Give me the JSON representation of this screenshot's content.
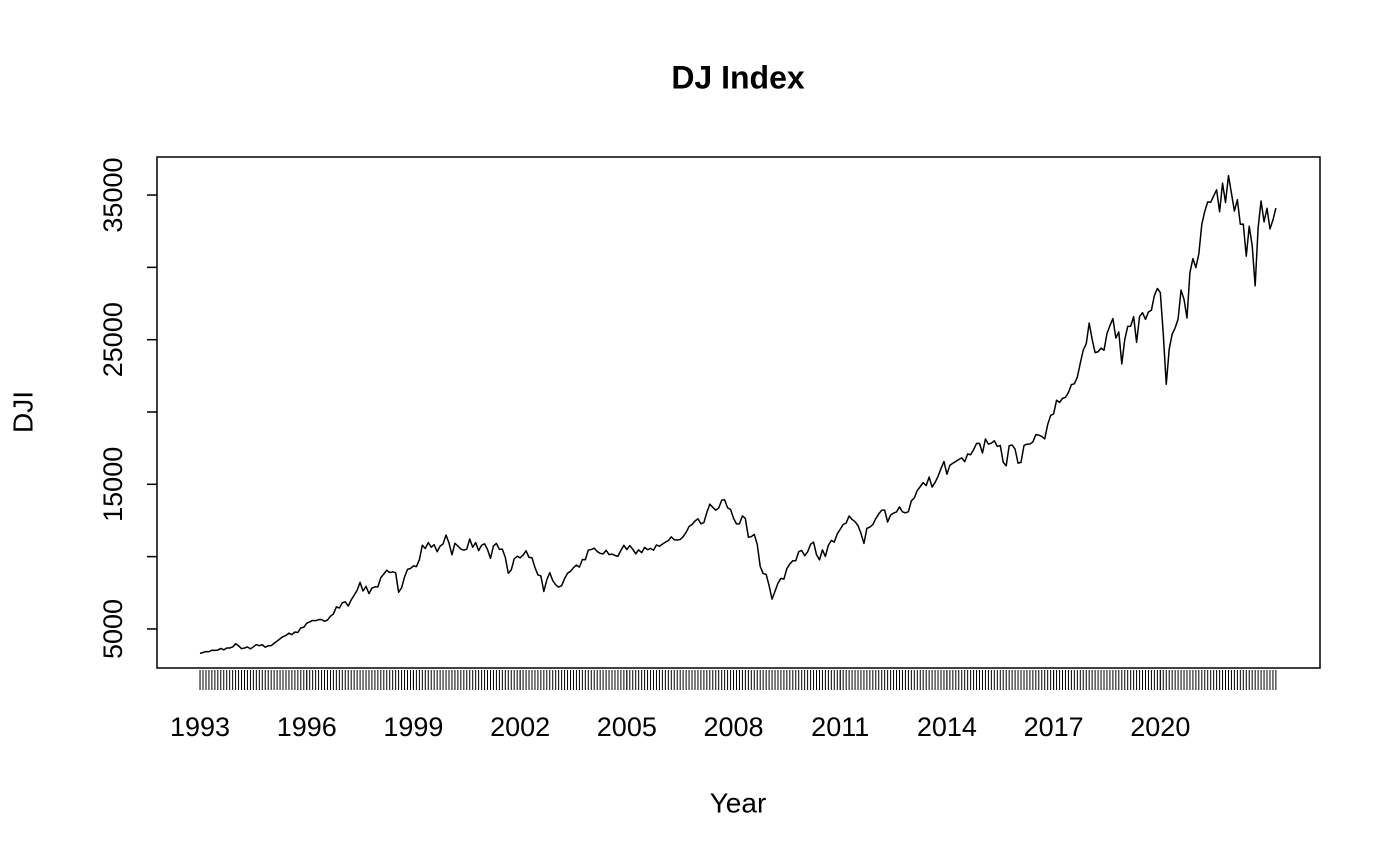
{
  "chart_data": {
    "type": "line",
    "title": "DJ Index",
    "xlabel": "Year",
    "ylabel": "DJI",
    "color": "#000000",
    "xlim": [
      1991.79,
      2024.49
    ],
    "ylim": [
      2300,
      37630
    ],
    "xticks": [
      1993,
      1996,
      1999,
      2002,
      2005,
      2008,
      2011,
      2014,
      2017,
      2020
    ],
    "yticks": [
      5000,
      {
        "value": 10000,
        "label": null
      },
      15000,
      {
        "value": 20000,
        "label": null
      },
      25000,
      {
        "value": 30000,
        "label": null
      },
      35000
    ],
    "x": [
      1993,
      1993.083,
      1993.167,
      1993.25,
      1993.333,
      1993.417,
      1993.5,
      1993.583,
      1993.667,
      1993.75,
      1993.833,
      1993.917,
      1994,
      1994.083,
      1994.167,
      1994.25,
      1994.333,
      1994.417,
      1994.5,
      1994.583,
      1994.667,
      1994.75,
      1994.833,
      1994.917,
      1995,
      1995.083,
      1995.167,
      1995.25,
      1995.333,
      1995.417,
      1995.5,
      1995.583,
      1995.667,
      1995.75,
      1995.833,
      1995.917,
      1996,
      1996.083,
      1996.167,
      1996.25,
      1996.333,
      1996.417,
      1996.5,
      1996.583,
      1996.667,
      1996.75,
      1996.833,
      1996.917,
      1997,
      1997.083,
      1997.167,
      1997.25,
      1997.333,
      1997.417,
      1997.5,
      1997.583,
      1997.667,
      1997.75,
      1997.833,
      1997.917,
      1998,
      1998.083,
      1998.167,
      1998.25,
      1998.333,
      1998.417,
      1998.5,
      1998.583,
      1998.667,
      1998.75,
      1998.833,
      1998.917,
      1999,
      1999.083,
      1999.167,
      1999.25,
      1999.333,
      1999.417,
      1999.5,
      1999.583,
      1999.667,
      1999.75,
      1999.833,
      1999.917,
      2000,
      2000.083,
      2000.167,
      2000.25,
      2000.333,
      2000.417,
      2000.5,
      2000.583,
      2000.667,
      2000.75,
      2000.833,
      2000.917,
      2001,
      2001.083,
      2001.167,
      2001.25,
      2001.333,
      2001.417,
      2001.5,
      2001.583,
      2001.667,
      2001.75,
      2001.833,
      2001.917,
      2002,
      2002.083,
      2002.167,
      2002.25,
      2002.333,
      2002.417,
      2002.5,
      2002.583,
      2002.667,
      2002.75,
      2002.833,
      2002.917,
      2003,
      2003.083,
      2003.167,
      2003.25,
      2003.333,
      2003.417,
      2003.5,
      2003.583,
      2003.667,
      2003.75,
      2003.833,
      2003.917,
      2004,
      2004.083,
      2004.167,
      2004.25,
      2004.333,
      2004.417,
      2004.5,
      2004.583,
      2004.667,
      2004.75,
      2004.833,
      2004.917,
      2005,
      2005.083,
      2005.167,
      2005.25,
      2005.333,
      2005.417,
      2005.5,
      2005.583,
      2005.667,
      2005.75,
      2005.833,
      2005.917,
      2006,
      2006.083,
      2006.167,
      2006.25,
      2006.333,
      2006.417,
      2006.5,
      2006.583,
      2006.667,
      2006.75,
      2006.833,
      2006.917,
      2007,
      2007.083,
      2007.167,
      2007.25,
      2007.333,
      2007.417,
      2007.5,
      2007.583,
      2007.667,
      2007.75,
      2007.833,
      2007.917,
      2008,
      2008.083,
      2008.167,
      2008.25,
      2008.333,
      2008.417,
      2008.5,
      2008.583,
      2008.667,
      2008.75,
      2008.833,
      2008.917,
      2009,
      2009.083,
      2009.167,
      2009.25,
      2009.333,
      2009.417,
      2009.5,
      2009.583,
      2009.667,
      2009.75,
      2009.833,
      2009.917,
      2010,
      2010.083,
      2010.167,
      2010.25,
      2010.333,
      2010.417,
      2010.5,
      2010.583,
      2010.667,
      2010.75,
      2010.833,
      2010.917,
      2011,
      2011.083,
      2011.167,
      2011.25,
      2011.333,
      2011.417,
      2011.5,
      2011.583,
      2011.667,
      2011.75,
      2011.833,
      2011.917,
      2012,
      2012.083,
      2012.167,
      2012.25,
      2012.333,
      2012.417,
      2012.5,
      2012.583,
      2012.667,
      2012.75,
      2012.833,
      2012.917,
      2013,
      2013.083,
      2013.167,
      2013.25,
      2013.333,
      2013.417,
      2013.5,
      2013.583,
      2013.667,
      2013.75,
      2013.833,
      2013.917,
      2014,
      2014.083,
      2014.167,
      2014.25,
      2014.333,
      2014.417,
      2014.5,
      2014.583,
      2014.667,
      2014.75,
      2014.833,
      2014.917,
      2015,
      2015.083,
      2015.167,
      2015.25,
      2015.333,
      2015.417,
      2015.5,
      2015.583,
      2015.667,
      2015.75,
      2015.833,
      2015.917,
      2016,
      2016.083,
      2016.167,
      2016.25,
      2016.333,
      2016.417,
      2016.5,
      2016.583,
      2016.667,
      2016.75,
      2016.833,
      2016.917,
      2017,
      2017.083,
      2017.167,
      2017.25,
      2017.333,
      2017.417,
      2017.5,
      2017.583,
      2017.667,
      2017.75,
      2017.833,
      2017.917,
      2018,
      2018.083,
      2018.167,
      2018.25,
      2018.333,
      2018.417,
      2018.5,
      2018.583,
      2018.667,
      2018.75,
      2018.833,
      2018.917,
      2019,
      2019.083,
      2019.167,
      2019.25,
      2019.333,
      2019.417,
      2019.5,
      2019.583,
      2019.667,
      2019.75,
      2019.833,
      2019.917,
      2020,
      2020.083,
      2020.167,
      2020.25,
      2020.333,
      2020.417,
      2020.5,
      2020.583,
      2020.667,
      2020.75,
      2020.833,
      2020.917,
      2021,
      2021.083,
      2021.167,
      2021.25,
      2021.333,
      2021.417,
      2021.5,
      2021.583,
      2021.667,
      2021.75,
      2021.833,
      2021.917,
      2022,
      2022.083,
      2022.167,
      2022.25,
      2022.333,
      2022.417,
      2022.5,
      2022.583,
      2022.667,
      2022.75,
      2022.833,
      2022.917,
      2023,
      2023.083,
      2023.167,
      2023.25
    ],
    "values": [
      3310,
      3370,
      3435,
      3428,
      3527,
      3516,
      3540,
      3651,
      3555,
      3681,
      3684,
      3754,
      3978,
      3832,
      3636,
      3682,
      3758,
      3625,
      3765,
      3913,
      3843,
      3908,
      3739,
      3834,
      3844,
      4011,
      4158,
      4321,
      4466,
      4556,
      4709,
      4611,
      4789,
      4756,
      5075,
      5117,
      5395,
      5486,
      5588,
      5569,
      5643,
      5655,
      5529,
      5616,
      5882,
      6029,
      6522,
      6448,
      6813,
      6878,
      6584,
      7009,
      7331,
      7673,
      8223,
      7622,
      7945,
      7442,
      7823,
      7908,
      7907,
      8546,
      8800,
      9063,
      8900,
      8952,
      8883,
      7539,
      7843,
      8592,
      9117,
      9181,
      9359,
      9307,
      9786,
      10789,
      10560,
      10971,
      10655,
      10829,
      10337,
      10729,
      10878,
      11497,
      10941,
      10128,
      10922,
      10734,
      10522,
      10448,
      10522,
      11215,
      10651,
      10971,
      10415,
      10787,
      10887,
      10495,
      9879,
      10735,
      10912,
      10502,
      10523,
      9950,
      8848,
      9075,
      9852,
      10022,
      9920,
      10106,
      10404,
      9946,
      9925,
      9243,
      8737,
      8664,
      7592,
      8397,
      8896,
      8342,
      8054,
      7891,
      7992,
      8480,
      8850,
      8985,
      9234,
      9416,
      9275,
      9801,
      9782,
      10454,
      10488,
      10584,
      10358,
      10226,
      10188,
      10435,
      10140,
      10174,
      10080,
      10027,
      10428,
      10783,
      10490,
      10766,
      10504,
      10193,
      10467,
      10275,
      10641,
      10482,
      10569,
      10440,
      10806,
      10718,
      10865,
      10993,
      11109,
      11367,
      11168,
      11150,
      11186,
      11381,
      11679,
      12081,
      12221,
      12463,
      12622,
      12269,
      12354,
      13063,
      13628,
      13409,
      13212,
      13358,
      13896,
      13930,
      13372,
      13265,
      12650,
      12266,
      12263,
      12820,
      12638,
      11350,
      11378,
      11544,
      10851,
      9325,
      8829,
      8776,
      8001,
      7063,
      7609,
      8168,
      8500,
      8447,
      9172,
      9496,
      9712,
      9713,
      10345,
      10428,
      10067,
      10325,
      10857,
      11009,
      10137,
      9774,
      10466,
      10015,
      10788,
      11118,
      11006,
      11578,
      11892,
      12226,
      12320,
      12811,
      12570,
      12414,
      12143,
      11614,
      10913,
      11955,
      12046,
      12218,
      12633,
      12952,
      13212,
      13214,
      12393,
      12880,
      13009,
      13091,
      13437,
      13096,
      13026,
      13104,
      13861,
      14054,
      14579,
      14840,
      15116,
      14910,
      15500,
      14810,
      15130,
      15546,
      16086,
      16577,
      15699,
      16322,
      16458,
      16581,
      16717,
      16827,
      16563,
      17098,
      17043,
      17391,
      17828,
      17823,
      17165,
      18133,
      17776,
      17841,
      18011,
      17620,
      17690,
      16528,
      16285,
      17664,
      17720,
      17425,
      16466,
      16517,
      17685,
      17774,
      17787,
      17930,
      18432,
      18401,
      18308,
      18142,
      19124,
      19763,
      19864,
      20812,
      20663,
      20941,
      21009,
      21350,
      21891,
      21948,
      22405,
      23377,
      24272,
      24719,
      26149,
      25029,
      24103,
      24163,
      24416,
      24271,
      25415,
      25965,
      26458,
      25116,
      25538,
      23327,
      24999,
      25916,
      25929,
      26593,
      24815,
      26600,
      26864,
      26403,
      26917,
      27046,
      28051,
      28538,
      28256,
      25409,
      21917,
      24346,
      25383,
      25813,
      26428,
      28430,
      27782,
      26502,
      29639,
      30606,
      29983,
      30932,
      32982,
      33875,
      34529,
      34503,
      34935,
      35361,
      33844,
      35820,
      34484,
      36338,
      35132,
      33893,
      34678,
      32977,
      32990,
      30775,
      32845,
      31510,
      28726,
      32733,
      34590,
      33147,
      34086,
      32657,
      33274,
      34098
    ]
  }
}
